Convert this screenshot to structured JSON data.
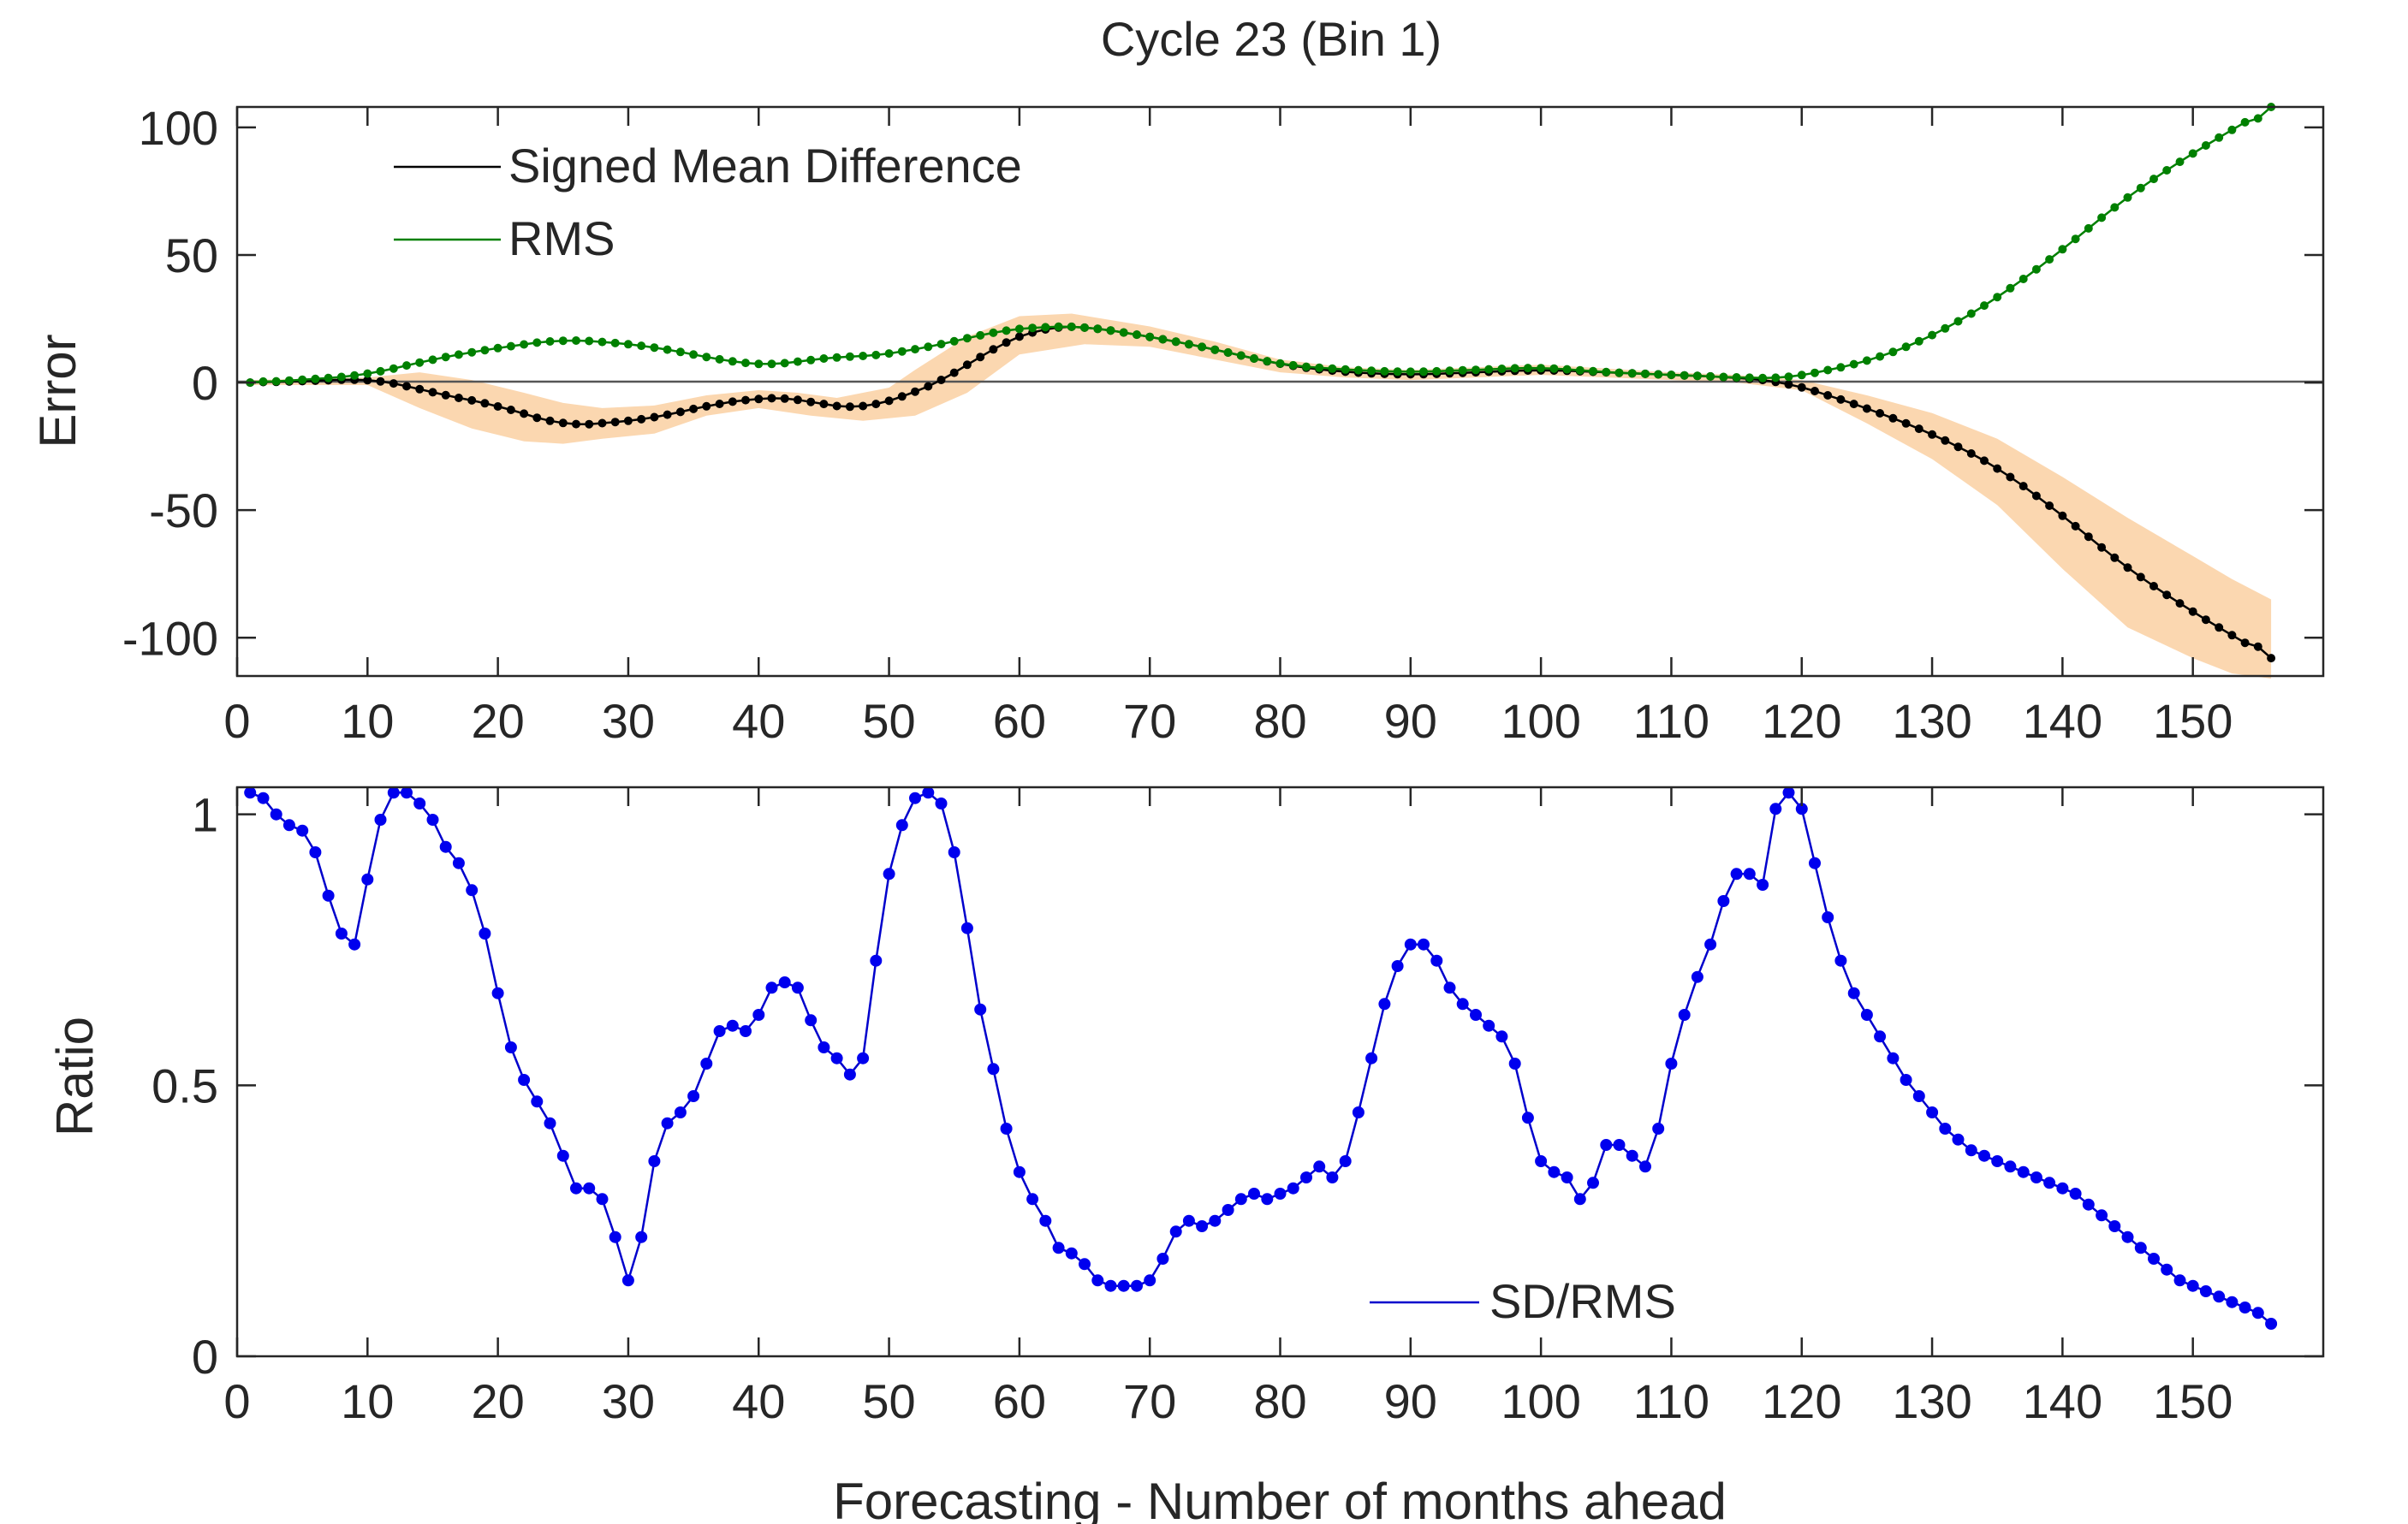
{
  "figure": {
    "title": "Cycle 23 (Bin 1)",
    "xlabel": "Forecasting - Number of months ahead"
  },
  "chart_data": [
    {
      "type": "line",
      "panel": "top",
      "title": "Cycle 23 (Bin 1)",
      "xlabel": "",
      "ylabel": "Error",
      "xlim": [
        0,
        160
      ],
      "ylim": [
        -115,
        108
      ],
      "xticks": [
        0,
        10,
        20,
        30,
        40,
        50,
        60,
        70,
        80,
        90,
        100,
        110,
        120,
        130,
        140,
        150
      ],
      "yticks": [
        100,
        50,
        0,
        -50,
        -100
      ],
      "ytick_labels": [
        "100",
        "50",
        "0",
        "-50",
        "-100"
      ],
      "zero_line": true,
      "legend_position": "top-left",
      "series": [
        {
          "name": "Signed Mean Difference",
          "color": "#000000",
          "marker_color": "#000000",
          "keypoints": [
            [
              1,
              0
            ],
            [
              5,
              0.5
            ],
            [
              10,
              1.5
            ],
            [
              12,
              0
            ],
            [
              15,
              -4
            ],
            [
              20,
              -9
            ],
            [
              25,
              -17
            ],
            [
              28,
              -16
            ],
            [
              32,
              -14
            ],
            [
              36,
              -9
            ],
            [
              40,
              -6
            ],
            [
              43,
              -6
            ],
            [
              46,
              -10
            ],
            [
              48,
              -10
            ],
            [
              51,
              -6
            ],
            [
              55,
              3
            ],
            [
              58,
              14
            ],
            [
              62,
              22
            ],
            [
              65,
              22
            ],
            [
              70,
              18
            ],
            [
              75,
              13
            ],
            [
              80,
              7
            ],
            [
              85,
              4
            ],
            [
              90,
              3
            ],
            [
              95,
              4
            ],
            [
              100,
              5
            ],
            [
              105,
              4
            ],
            [
              110,
              3
            ],
            [
              115,
              2
            ],
            [
              119,
              0
            ],
            [
              125,
              -10
            ],
            [
              130,
              -20
            ],
            [
              135,
              -33
            ],
            [
              140,
              -52
            ],
            [
              145,
              -73
            ],
            [
              150,
              -90
            ],
            [
              153,
              -99
            ],
            [
              156,
              -108
            ]
          ]
        },
        {
          "name": "RMS",
          "color": "#008000",
          "marker_color": "#008000",
          "keypoints": [
            [
              1,
              0
            ],
            [
              5,
              1
            ],
            [
              10,
              3
            ],
            [
              14,
              8
            ],
            [
              18,
              12
            ],
            [
              22,
              15
            ],
            [
              25,
              17
            ],
            [
              28,
              16
            ],
            [
              32,
              14
            ],
            [
              35,
              11
            ],
            [
              38,
              8
            ],
            [
              40,
              7
            ],
            [
              42,
              7
            ],
            [
              45,
              10
            ],
            [
              48,
              10
            ],
            [
              51,
              12
            ],
            [
              55,
              16
            ],
            [
              58,
              20
            ],
            [
              62,
              22
            ],
            [
              65,
              22
            ],
            [
              70,
              18
            ],
            [
              75,
              13
            ],
            [
              80,
              7
            ],
            [
              85,
              5
            ],
            [
              90,
              4
            ],
            [
              95,
              5
            ],
            [
              100,
              6
            ],
            [
              105,
              4
            ],
            [
              110,
              3
            ],
            [
              115,
              2
            ],
            [
              119,
              1.5
            ],
            [
              122,
              5
            ],
            [
              125,
              8
            ],
            [
              130,
              18
            ],
            [
              135,
              33
            ],
            [
              140,
              52
            ],
            [
              145,
              73
            ],
            [
              150,
              90
            ],
            [
              153,
              99
            ],
            [
              156,
              108
            ]
          ]
        }
      ],
      "band": {
        "color": "#fbd7b0",
        "upper": [
          [
            1,
            1
          ],
          [
            10,
            2
          ],
          [
            14,
            4
          ],
          [
            18,
            1
          ],
          [
            22,
            -4
          ],
          [
            25,
            -8
          ],
          [
            28,
            -10
          ],
          [
            32,
            -9
          ],
          [
            36,
            -5
          ],
          [
            40,
            -3
          ],
          [
            43,
            -4
          ],
          [
            46,
            -6
          ],
          [
            50,
            -2
          ],
          [
            52,
            5
          ],
          [
            56,
            18
          ],
          [
            60,
            26
          ],
          [
            64,
            27
          ],
          [
            70,
            22
          ],
          [
            75,
            16
          ],
          [
            80,
            9
          ],
          [
            85,
            6
          ],
          [
            90,
            5
          ],
          [
            95,
            6
          ],
          [
            100,
            7
          ],
          [
            110,
            4
          ],
          [
            115,
            3
          ],
          [
            120,
            1
          ],
          [
            125,
            -5
          ],
          [
            130,
            -12
          ],
          [
            135,
            -22
          ],
          [
            140,
            -37
          ],
          [
            145,
            -53
          ],
          [
            150,
            -68
          ],
          [
            153,
            -77
          ],
          [
            156,
            -85
          ]
        ],
        "lower": [
          [
            156,
            -116
          ],
          [
            153,
            -114
          ],
          [
            150,
            -108
          ],
          [
            145,
            -96
          ],
          [
            140,
            -73
          ],
          [
            135,
            -48
          ],
          [
            130,
            -30
          ],
          [
            125,
            -16
          ],
          [
            120,
            -3
          ],
          [
            115,
            0
          ],
          [
            110,
            1
          ],
          [
            100,
            3
          ],
          [
            95,
            2
          ],
          [
            90,
            1
          ],
          [
            85,
            2
          ],
          [
            80,
            4
          ],
          [
            75,
            9
          ],
          [
            70,
            14
          ],
          [
            65,
            15
          ],
          [
            60,
            11
          ],
          [
            56,
            -4
          ],
          [
            52,
            -13
          ],
          [
            48,
            -15
          ],
          [
            44,
            -13
          ],
          [
            40,
            -10
          ],
          [
            36,
            -13
          ],
          [
            32,
            -20
          ],
          [
            28,
            -22
          ],
          [
            25,
            -24
          ],
          [
            22,
            -23
          ],
          [
            18,
            -18
          ],
          [
            14,
            -10
          ],
          [
            10,
            -1
          ],
          [
            1,
            -1
          ]
        ]
      }
    },
    {
      "type": "line",
      "panel": "bottom",
      "xlabel": "Forecasting - Number of months ahead",
      "ylabel": "Ratio",
      "xlim": [
        0,
        160
      ],
      "ylim": [
        0,
        1.05
      ],
      "xticks": [
        0,
        10,
        20,
        30,
        40,
        50,
        60,
        70,
        80,
        90,
        100,
        110,
        120,
        130,
        140,
        150
      ],
      "yticks": [
        1,
        0.5,
        0
      ],
      "ytick_labels": [
        "1",
        "0.5",
        "0"
      ],
      "legend_position": "bottom-center",
      "series": [
        {
          "name": "SD/RMS",
          "color": "#0000cc",
          "marker_color": "#0000ee",
          "x": [
            1,
            2,
            3,
            4,
            5,
            6,
            7,
            8,
            9,
            10,
            11,
            12,
            13,
            14,
            15,
            16,
            17,
            18,
            19,
            20,
            21,
            22,
            23,
            24,
            25,
            26,
            27,
            28,
            29,
            30,
            31,
            32,
            33,
            34,
            35,
            36,
            37,
            38,
            39,
            40,
            41,
            42,
            43,
            44,
            45,
            46,
            47,
            48,
            49,
            50,
            51,
            52,
            53,
            54,
            55,
            56,
            57,
            58,
            59,
            60,
            61,
            62,
            63,
            64,
            65,
            66,
            67,
            68,
            69,
            70,
            71,
            72,
            73,
            74,
            75,
            76,
            77,
            78,
            79,
            80,
            81,
            82,
            83,
            84,
            85,
            86,
            87,
            88,
            89,
            90,
            91,
            92,
            93,
            94,
            95,
            96,
            97,
            98,
            99,
            100,
            101,
            102,
            103,
            104,
            105,
            106,
            107,
            108,
            109,
            110,
            111,
            112,
            113,
            114,
            115,
            116,
            117,
            118,
            119,
            120,
            121,
            122,
            123,
            124,
            125,
            126,
            127,
            128,
            129,
            130,
            131,
            132,
            133,
            134,
            135,
            136,
            137,
            138,
            139,
            140,
            141,
            142,
            143,
            144,
            145,
            146,
            147,
            148,
            149,
            150,
            151,
            152,
            153,
            154,
            155,
            156
          ],
          "values": [
            1.04,
            1.03,
            1.0,
            0.98,
            0.97,
            0.93,
            0.85,
            0.78,
            0.76,
            0.88,
            0.99,
            1.04,
            1.04,
            1.02,
            0.99,
            0.94,
            0.91,
            0.86,
            0.78,
            0.67,
            0.57,
            0.51,
            0.47,
            0.43,
            0.37,
            0.31,
            0.31,
            0.29,
            0.22,
            0.14,
            0.22,
            0.36,
            0.43,
            0.45,
            0.48,
            0.54,
            0.6,
            0.61,
            0.6,
            0.63,
            0.68,
            0.69,
            0.68,
            0.62,
            0.57,
            0.55,
            0.52,
            0.55,
            0.73,
            0.89,
            0.98,
            1.03,
            1.04,
            1.02,
            0.93,
            0.79,
            0.64,
            0.53,
            0.42,
            0.34,
            0.29,
            0.25,
            0.2,
            0.19,
            0.17,
            0.14,
            0.13,
            0.13,
            0.13,
            0.14,
            0.18,
            0.23,
            0.25,
            0.24,
            0.25,
            0.27,
            0.29,
            0.3,
            0.29,
            0.3,
            0.31,
            0.33,
            0.35,
            0.33,
            0.36,
            0.45,
            0.55,
            0.65,
            0.72,
            0.76,
            0.76,
            0.73,
            0.68,
            0.65,
            0.63,
            0.61,
            0.59,
            0.54,
            0.44,
            0.36,
            0.34,
            0.33,
            0.29,
            0.32,
            0.39,
            0.39,
            0.37,
            0.35,
            0.42,
            0.54,
            0.63,
            0.7,
            0.76,
            0.84,
            0.89,
            0.89,
            0.87,
            1.01,
            1.04,
            1.01,
            0.91,
            0.81,
            0.73,
            0.67,
            0.63,
            0.59,
            0.55,
            0.51,
            0.48,
            0.45,
            0.42,
            0.4,
            0.38,
            0.37,
            0.36,
            0.35,
            0.34,
            0.33,
            0.32,
            0.31,
            0.3,
            0.28,
            0.26,
            0.24,
            0.22,
            0.2,
            0.18,
            0.16,
            0.14,
            0.13,
            0.12,
            0.11,
            0.1,
            0.09,
            0.08,
            0.06
          ]
        }
      ]
    }
  ]
}
